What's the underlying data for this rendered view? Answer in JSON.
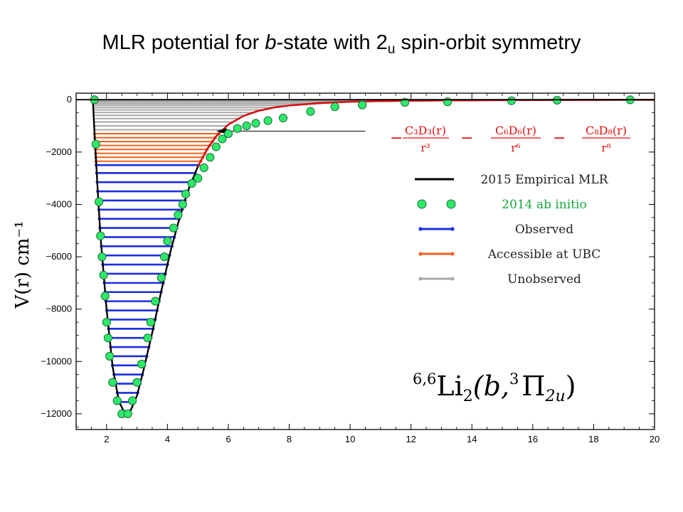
{
  "slide": {
    "title_pre": "MLR potential for ",
    "title_italic": "b",
    "title_mid": "-state with 2",
    "title_sub": "u",
    "title_post": " spin-orbit symmetry"
  },
  "chart_data": {
    "type": "line",
    "ylabel": "V(r)  cm⁻¹",
    "xlim": [
      1,
      20
    ],
    "ylim": [
      -12600,
      250
    ],
    "x_ticks": [
      2,
      4,
      6,
      8,
      10,
      12,
      14,
      16,
      18,
      20
    ],
    "y_ticks": [
      0,
      -2000,
      -4000,
      -6000,
      -8000,
      -10000,
      -12000
    ],
    "x_tick_labels": [
      "2",
      "4",
      "6",
      "8",
      "10",
      "12",
      "14",
      "16",
      "18",
      "20"
    ],
    "y_tick_labels": [
      "0",
      "−2000",
      "−4000",
      "−6000",
      "−8000",
      "−10000",
      "−12000"
    ],
    "grid": false,
    "legend_position": "right",
    "legend": [
      {
        "label": "2015 Empirical MLR",
        "style": "line",
        "color": "#000000"
      },
      {
        "label": "2014 ab initio",
        "style": "markers",
        "color": "#2ee86a"
      },
      {
        "label": "Observed",
        "style": "line-dots",
        "color": "#1a2ee0"
      },
      {
        "label": "Accessible at UBC",
        "style": "line-dots",
        "color": "#f06020"
      },
      {
        "label": "Unobserved",
        "style": "line-dots",
        "color": "#a9a9a9"
      }
    ],
    "species_label": {
      "sup": "6,6",
      "main": "Li",
      "sub": "2",
      "paren_open": "(b,",
      "sup2": "3",
      "pi": "Π",
      "pi_sub": "2u",
      "paren_close": ")"
    },
    "annotation": {
      "text": "− C₃D₃(r)/r³ − C₆D₆(r)/r⁶ − C₈D₈(r)/r⁸",
      "color": "#e01010",
      "terms": [
        {
          "num": "C₃D₃(r)",
          "den": "r³"
        },
        {
          "num": "C₆D₆(r)",
          "den": "r⁶"
        },
        {
          "num": "C₈D₈(r)",
          "den": "r⁸"
        }
      ]
    },
    "series": [
      {
        "name": "2015 Empirical MLR",
        "color": "#000000",
        "x": [
          1.55,
          1.6,
          1.7,
          1.8,
          2.0,
          2.2,
          2.4,
          2.6,
          2.8,
          3.0,
          3.2,
          3.5,
          3.8,
          4.1,
          4.4,
          4.7,
          5.0,
          5.3,
          5.6,
          6.0,
          6.5,
          7.0,
          7.5,
          8.0,
          9.0,
          10.0,
          11.0,
          12.0,
          14.0,
          16.0,
          18.0,
          20.0
        ],
        "y": [
          0,
          -1200,
          -3300,
          -5200,
          -8000,
          -10200,
          -11500,
          -12000,
          -11850,
          -11300,
          -10400,
          -8900,
          -7300,
          -5800,
          -4500,
          -3400,
          -2550,
          -1900,
          -1400,
          -950,
          -620,
          -420,
          -300,
          -220,
          -130,
          -80,
          -55,
          -40,
          -22,
          -13,
          -8,
          -5
        ]
      },
      {
        "name": "2014 ab initio",
        "color": "#2ee86a",
        "x": [
          1.6,
          1.65,
          1.75,
          1.8,
          1.85,
          1.9,
          1.95,
          2.0,
          2.05,
          2.1,
          2.2,
          2.35,
          2.5,
          2.7,
          2.85,
          3.0,
          3.15,
          3.35,
          3.45,
          3.6,
          3.8,
          3.9,
          4.0,
          4.2,
          4.35,
          4.5,
          4.6,
          4.8,
          5.0,
          5.2,
          5.4,
          5.6,
          5.8,
          6.0,
          6.3,
          6.6,
          6.9,
          7.3,
          7.8,
          8.7,
          9.5,
          10.4,
          11.8,
          13.2,
          15.3,
          16.8,
          19.2
        ],
        "y": [
          0,
          -1700,
          -3900,
          -5200,
          -6000,
          -6700,
          -7500,
          -8500,
          -9100,
          -9800,
          -10800,
          -11500,
          -12000,
          -12000,
          -11500,
          -10800,
          -10100,
          -9100,
          -8500,
          -7700,
          -6800,
          -6000,
          -5400,
          -4900,
          -4400,
          -4000,
          -3600,
          -3200,
          -3000,
          -2600,
          -2200,
          -1800,
          -1500,
          -1300,
          -1100,
          -1000,
          -900,
          -800,
          -700,
          -450,
          -270,
          -200,
          -100,
          -80,
          -40,
          -20,
          -5
        ]
      }
    ],
    "levels": {
      "observed": {
        "color": "#1a2ee0",
        "energies": [
          -11900,
          -11550,
          -11200,
          -10850,
          -10500,
          -10150,
          -9800,
          -9450,
          -9100,
          -8750,
          -8400,
          -8050,
          -7700,
          -7350,
          -7000,
          -6650,
          -6300,
          -5950,
          -5600,
          -5250,
          -4900,
          -4550,
          -4200,
          -3850,
          -3500,
          -3150,
          -2800,
          -2500
        ]
      },
      "accessible": {
        "color": "#f06020",
        "energies": [
          -2350,
          -2200,
          -2050,
          -1900,
          -1750,
          -1600,
          -1450,
          -1300
        ]
      },
      "unobserved": {
        "color": "#a9a9a9",
        "energies": [
          -1150,
          -1000,
          -850,
          -720,
          -600,
          -490,
          -390,
          -300,
          -220,
          -150,
          -90,
          -40
        ]
      }
    }
  }
}
